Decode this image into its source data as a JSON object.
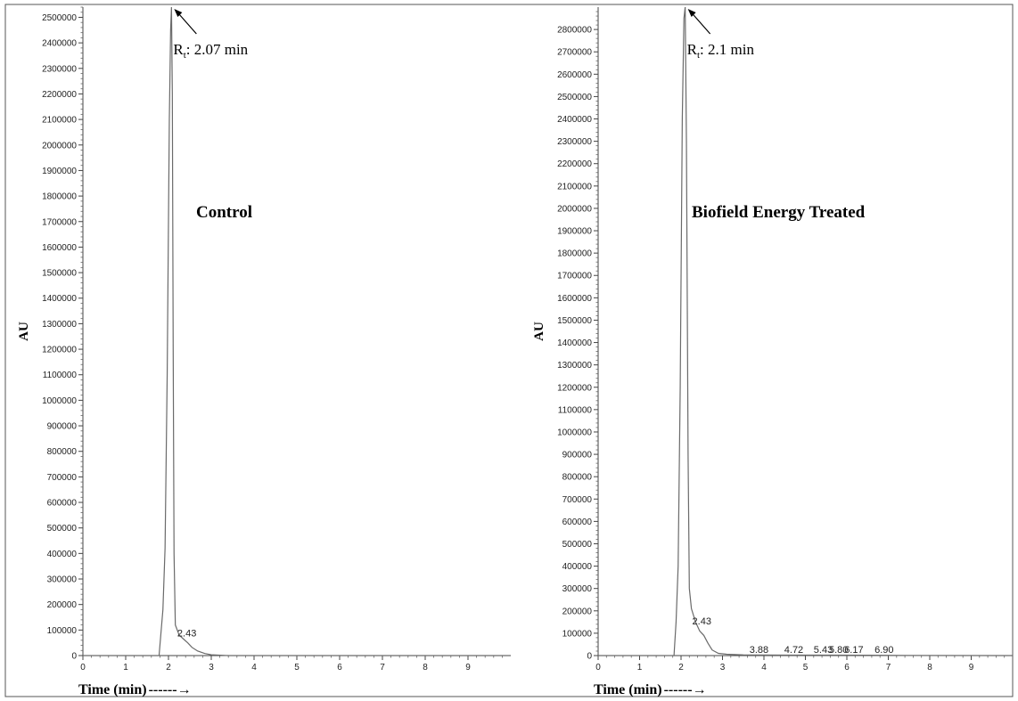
{
  "chart_data": [
    {
      "type": "line",
      "label": "Control",
      "ylabel": "AU",
      "xlabel": "Time (min)",
      "xlabel_arrow": "------→",
      "xlim": [
        0,
        10
      ],
      "ylim": [
        0,
        2540000
      ],
      "x_ticks": [
        0,
        1,
        2,
        3,
        4,
        5,
        6,
        7,
        8,
        9
      ],
      "y_tick_step": 100000,
      "y_tick_max": 2500000,
      "retention_annotation": {
        "prefix": "R",
        "subscript": "t",
        "text": ": 2.07 min",
        "x": 2.07
      },
      "peak_labels": [
        {
          "text": "2.43",
          "x": 2.43,
          "y": 40000
        }
      ],
      "trace": {
        "x": [
          0,
          1.78,
          1.82,
          1.87,
          1.92,
          1.97,
          2.02,
          2.05,
          2.07,
          2.09,
          2.11,
          2.13,
          2.16,
          2.25,
          2.35,
          2.45,
          2.55,
          2.68,
          2.85,
          3.0,
          3.4,
          10
        ],
        "y": [
          0,
          0,
          80000,
          180000,
          420000,
          1100000,
          2100000,
          2450000,
          2540000,
          2200000,
          1200000,
          400000,
          120000,
          80000,
          65000,
          50000,
          32000,
          18000,
          8000,
          3000,
          0,
          0
        ]
      }
    },
    {
      "type": "line",
      "label": "Biofield Energy Treated",
      "ylabel": "AU",
      "xlabel": "Time (min)",
      "xlabel_arrow": "------→",
      "xlim": [
        0,
        10
      ],
      "ylim": [
        0,
        2900000
      ],
      "x_ticks": [
        0,
        1,
        2,
        3,
        4,
        5,
        6,
        7,
        8,
        9
      ],
      "y_tick_step": 100000,
      "y_tick_max": 2800000,
      "retention_annotation": {
        "prefix": "R",
        "subscript": "t",
        "text": ": 2.1 min",
        "x": 2.1
      },
      "peak_labels": [
        {
          "text": "2.43",
          "x": 2.5,
          "y": 100000
        },
        {
          "text": "3.88",
          "x": 3.88,
          "y": 0
        },
        {
          "text": "4.72",
          "x": 4.72,
          "y": 0
        },
        {
          "text": "5.43",
          "x": 5.43,
          "y": 0
        },
        {
          "text": "5.80",
          "x": 5.8,
          "y": 0
        },
        {
          "text": "6.17",
          "x": 6.17,
          "y": 0
        },
        {
          "text": "6.90",
          "x": 6.9,
          "y": 0
        }
      ],
      "trace": {
        "x": [
          0,
          1.83,
          1.88,
          1.93,
          1.98,
          2.03,
          2.07,
          2.1,
          2.13,
          2.17,
          2.2,
          2.25,
          2.35,
          2.45,
          2.55,
          2.65,
          2.75,
          2.9,
          3.1,
          3.5,
          4.5,
          5.5,
          6.5,
          7.5,
          10
        ],
        "y": [
          0,
          0,
          150000,
          400000,
          1200000,
          2400000,
          2850000,
          2900000,
          2300000,
          900000,
          300000,
          210000,
          150000,
          110000,
          90000,
          55000,
          25000,
          10000,
          6000,
          3000,
          2000,
          2000,
          1500,
          500,
          0
        ]
      }
    }
  ]
}
